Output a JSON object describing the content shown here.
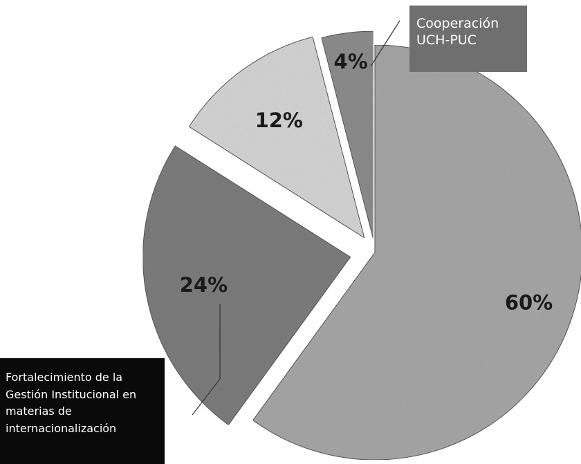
{
  "chart_data": {
    "type": "pie",
    "slices": [
      {
        "label": "60%",
        "value": 60,
        "color": "#a8a8a8"
      },
      {
        "label": "24%",
        "value": 24,
        "color": "#7e7e7e"
      },
      {
        "label": "12%",
        "value": 12,
        "color": "#d6d6d6"
      },
      {
        "label": "4%",
        "value": 4,
        "color": "#8e8e8e"
      }
    ],
    "exploded": true,
    "callouts": [
      {
        "slice": "4%",
        "lines": [
          "Cooperación",
          "UCH-PUC"
        ]
      },
      {
        "slice": "24%",
        "lines": [
          "Fortalecimiento de la",
          "Gestión  Institucional en",
          "materias de",
          "internacionalización"
        ]
      }
    ]
  }
}
